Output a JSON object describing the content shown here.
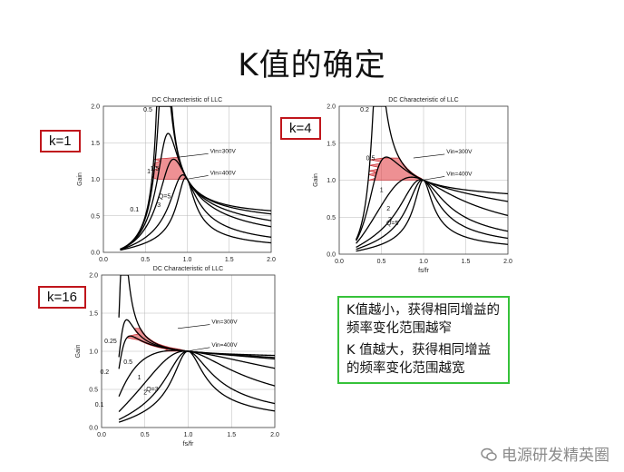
{
  "slide": {
    "title": "K值的确定",
    "k_labels": [
      "k=1",
      "k=4",
      "k=16"
    ],
    "notes": [
      "K值越小，获得相同增益的频率变化范围越窄",
      "K 值越大，获得相同增益的频率变化范围越宽"
    ],
    "watermark": "电源研发精英圈",
    "accent_red": "#c0161c",
    "accent_green": "#36c23a"
  },
  "chart_data": [
    {
      "type": "line",
      "title": "DC Characteristic of LLC",
      "xlabel": "",
      "ylabel": "Gain",
      "k": 1,
      "xlim": [
        0.0,
        2.0
      ],
      "ylim": [
        0.0,
        2.0
      ],
      "xticks": [
        "0.0",
        "0.5",
        "1.0",
        "1.5",
        "2.0"
      ],
      "yticks": [
        "0.0",
        "0.5",
        "1.0",
        "1.5",
        "2.0"
      ],
      "q_labels": [
        "0.1",
        "0.5",
        "1",
        "1.5",
        "3",
        "Q=5"
      ],
      "q_values": [
        0.1,
        0.5,
        1,
        1.5,
        3,
        5
      ],
      "label_x": [
        0.52,
        0.68,
        0.66,
        0.76,
        0.78,
        0.9
      ],
      "annotations": [
        "Vin=300V",
        "Vin=400V"
      ],
      "vin300_gain": 1.3,
      "vin400_gain": 1.0
    },
    {
      "type": "line",
      "title": "DC Characteristic of LLC",
      "xlabel": "fs/fr",
      "ylabel": "Gain",
      "k": 4,
      "xlim": [
        0.0,
        2.0
      ],
      "ylim": [
        0.0,
        2.0
      ],
      "xticks": [
        "0.0",
        "0.5",
        "1.0",
        "1.5",
        "2.0"
      ],
      "yticks": [
        "0.0",
        "0.5",
        "1.0",
        "1.5",
        "2.0"
      ],
      "q_labels": [
        "0.2",
        "0.5",
        "1",
        "2",
        "3",
        "Q=5"
      ],
      "q_values": [
        0.2,
        0.5,
        1,
        2,
        3,
        5
      ],
      "label_x": [
        0.45,
        0.52,
        0.62,
        0.7,
        0.72,
        0.8
      ],
      "annotations": [
        "Vin=300V",
        "Vin=400V"
      ],
      "vin300_gain": 1.3,
      "vin400_gain": 1.0
    },
    {
      "type": "line",
      "title": "DC Characteristic of LLC",
      "xlabel": "fs/fr",
      "ylabel": "Gain",
      "k": 16,
      "xlim": [
        0.0,
        2.0
      ],
      "ylim": [
        0.0,
        2.0
      ],
      "xticks": [
        "0.0",
        "0.5",
        "1.0",
        "1.5",
        "2.0"
      ],
      "yticks": [
        "0.0",
        "0.5",
        "1.0",
        "1.5",
        "2.0"
      ],
      "q_labels": [
        "0.1",
        "0.2",
        "0.25",
        "0.5",
        "1",
        "2",
        "Q=3"
      ],
      "q_values": [
        0.1,
        0.2,
        0.25,
        0.5,
        1,
        2,
        3
      ],
      "label_x": [
        0.12,
        0.18,
        0.27,
        0.45,
        0.55,
        0.62,
        0.75
      ],
      "annotations": [
        "Vin=300V",
        "Vin=400V"
      ],
      "vin300_gain": 1.3,
      "vin400_gain": 1.0
    }
  ]
}
